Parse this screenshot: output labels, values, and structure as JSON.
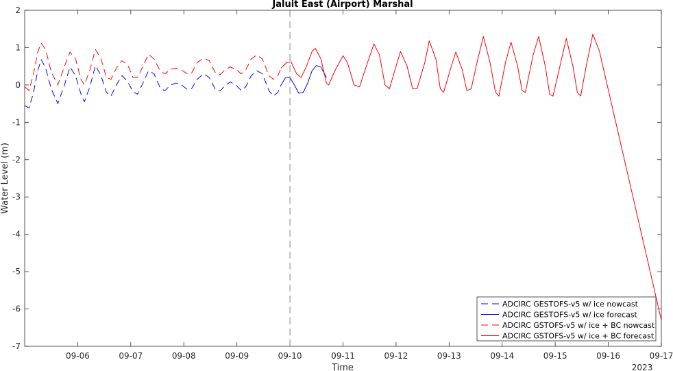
{
  "chart_data": {
    "type": "line",
    "title": "Jaluit East (Airport) Marshal",
    "xlabel": "Time",
    "ylabel": "Water Level (m)",
    "year_label": "2023",
    "ylim": [
      -7,
      2
    ],
    "yticks": [
      "-7",
      "-6",
      "-5",
      "-4",
      "-3",
      "-2",
      "-1",
      "0",
      "1",
      "2"
    ],
    "xlim": [
      "2023-09-05 00:00",
      "2023-09-17 00:00"
    ],
    "xticks": [
      "09-06",
      "09-07",
      "09-08",
      "09-09",
      "09-10",
      "09-11",
      "09-12",
      "09-13",
      "09-14",
      "09-15",
      "09-16",
      "09-17"
    ],
    "nowcast_forecast_boundary": "2023-09-10 00:00",
    "grid": false,
    "legend_position": "bottom-right",
    "series": [
      {
        "name": "ADCIRC GESTOFS-v5 w/ ice nowcast",
        "color": "#0000ff",
        "dash": "dashed",
        "points": [
          [
            "09-05 00:00",
            -0.55
          ],
          [
            "09-05 02:00",
            -0.62
          ],
          [
            "09-05 04:00",
            -0.2
          ],
          [
            "09-05 06:00",
            0.4
          ],
          [
            "09-05 07:30",
            0.68
          ],
          [
            "09-05 09:30",
            0.45
          ],
          [
            "09-05 12:00",
            -0.1
          ],
          [
            "09-05 15:00",
            -0.5
          ],
          [
            "09-05 18:00",
            0.0
          ],
          [
            "09-05 20:30",
            0.48
          ],
          [
            "09-05 23:00",
            0.25
          ],
          [
            "09-06 01:30",
            -0.25
          ],
          [
            "09-06 03:00",
            -0.45
          ],
          [
            "09-06 05:30",
            -0.05
          ],
          [
            "09-06 08:00",
            0.52
          ],
          [
            "09-06 10:30",
            0.25
          ],
          [
            "09-06 13:00",
            -0.2
          ],
          [
            "09-06 15:00",
            -0.3
          ],
          [
            "09-06 17:30",
            0.0
          ],
          [
            "09-06 20:00",
            0.25
          ],
          [
            "09-06 22:30",
            0.1
          ],
          [
            "09-07 01:00",
            -0.18
          ],
          [
            "09-07 03:00",
            -0.25
          ],
          [
            "09-07 05:30",
            0.05
          ],
          [
            "09-07 08:00",
            0.38
          ],
          [
            "09-07 10:30",
            0.3
          ],
          [
            "09-07 13:30",
            -0.1
          ],
          [
            "09-07 15:30",
            -0.15
          ],
          [
            "09-07 18:00",
            0.0
          ],
          [
            "09-07 20:30",
            0.05
          ],
          [
            "09-07 23:00",
            0.0
          ],
          [
            "09-08 01:30",
            -0.12
          ],
          [
            "09-08 03:30",
            -0.1
          ],
          [
            "09-08 06:00",
            0.15
          ],
          [
            "09-08 09:00",
            0.3
          ],
          [
            "09-08 11:30",
            0.2
          ],
          [
            "09-08 14:30",
            -0.15
          ],
          [
            "09-08 16:30",
            -0.15
          ],
          [
            "09-08 19:00",
            0.0
          ],
          [
            "09-08 21:00",
            0.08
          ],
          [
            "09-08 23:30",
            0.0
          ],
          [
            "09-09 02:00",
            -0.15
          ],
          [
            "09-09 04:00",
            -0.05
          ],
          [
            "09-09 06:30",
            0.25
          ],
          [
            "09-09 09:00",
            0.38
          ],
          [
            "09-09 11:30",
            0.3
          ],
          [
            "09-09 14:30",
            -0.15
          ],
          [
            "09-09 16:30",
            -0.3
          ],
          [
            "09-09 18:30",
            -0.2
          ],
          [
            "09-09 20:00",
            0.0
          ]
        ]
      },
      {
        "name": "ADCIRC GESTOFS-v5 w/ ice forecast",
        "color": "#0000ff",
        "dash": "solid",
        "points": [
          [
            "09-09 20:00",
            0.0
          ],
          [
            "09-09 22:00",
            0.2
          ],
          [
            "09-10 00:00",
            0.2
          ],
          [
            "09-10 02:00",
            0.0
          ],
          [
            "09-10 04:00",
            -0.22
          ],
          [
            "09-10 06:00",
            -0.2
          ],
          [
            "09-10 08:00",
            0.05
          ],
          [
            "09-10 10:00",
            0.38
          ],
          [
            "09-10 12:00",
            0.52
          ],
          [
            "09-10 14:00",
            0.48
          ],
          [
            "09-10 16:30",
            0.2
          ]
        ]
      },
      {
        "name": "ADCIRC GSTOFS-v5 w/ ice + BC nowcast",
        "color": "#ff0000",
        "dash": "dashed",
        "points": [
          [
            "09-05 00:00",
            -0.05
          ],
          [
            "09-05 02:00",
            -0.15
          ],
          [
            "09-05 04:00",
            0.3
          ],
          [
            "09-05 06:00",
            0.9
          ],
          [
            "09-05 07:30",
            1.12
          ],
          [
            "09-05 09:30",
            0.95
          ],
          [
            "09-05 12:00",
            0.35
          ],
          [
            "09-05 15:00",
            0.0
          ],
          [
            "09-05 18:00",
            0.5
          ],
          [
            "09-05 20:30",
            0.88
          ],
          [
            "09-05 23:00",
            0.7
          ],
          [
            "09-06 01:30",
            0.15
          ],
          [
            "09-06 03:00",
            0.0
          ],
          [
            "09-06 05:30",
            0.4
          ],
          [
            "09-06 08:00",
            0.95
          ],
          [
            "09-06 10:30",
            0.7
          ],
          [
            "09-06 13:00",
            0.2
          ],
          [
            "09-06 15:00",
            0.15
          ],
          [
            "09-06 17:30",
            0.45
          ],
          [
            "09-06 20:00",
            0.65
          ],
          [
            "09-06 22:30",
            0.55
          ],
          [
            "09-07 01:00",
            0.2
          ],
          [
            "09-07 03:00",
            0.2
          ],
          [
            "09-07 05:30",
            0.5
          ],
          [
            "09-07 08:00",
            0.82
          ],
          [
            "09-07 10:30",
            0.7
          ],
          [
            "09-07 13:30",
            0.35
          ],
          [
            "09-07 15:30",
            0.3
          ],
          [
            "09-07 18:00",
            0.42
          ],
          [
            "09-07 20:30",
            0.45
          ],
          [
            "09-07 23:00",
            0.4
          ],
          [
            "09-08 01:30",
            0.3
          ],
          [
            "09-08 03:30",
            0.32
          ],
          [
            "09-08 06:00",
            0.6
          ],
          [
            "09-08 09:00",
            0.72
          ],
          [
            "09-08 11:30",
            0.65
          ],
          [
            "09-08 14:30",
            0.3
          ],
          [
            "09-08 16:30",
            0.28
          ],
          [
            "09-08 19:00",
            0.42
          ],
          [
            "09-08 21:00",
            0.48
          ],
          [
            "09-08 23:30",
            0.42
          ],
          [
            "09-09 02:00",
            0.3
          ],
          [
            "09-09 04:00",
            0.4
          ],
          [
            "09-09 06:30",
            0.7
          ],
          [
            "09-09 09:00",
            0.8
          ],
          [
            "09-09 11:30",
            0.7
          ],
          [
            "09-09 14:30",
            0.25
          ],
          [
            "09-09 16:30",
            0.15
          ],
          [
            "09-09 18:30",
            0.25
          ],
          [
            "09-09 20:00",
            0.45
          ]
        ]
      },
      {
        "name": "ADCIRC GSTOFS-v5 w/ ice + BC forecast",
        "color": "#ff0000",
        "dash": "solid",
        "points": [
          [
            "09-09 20:00",
            0.45
          ],
          [
            "09-09 22:30",
            0.6
          ],
          [
            "09-10 00:30",
            0.62
          ],
          [
            "09-10 03:00",
            0.3
          ],
          [
            "09-10 05:00",
            0.2
          ],
          [
            "09-10 07:30",
            0.5
          ],
          [
            "09-10 10:00",
            0.9
          ],
          [
            "09-10 11:30",
            0.98
          ],
          [
            "09-10 14:00",
            0.7
          ],
          [
            "09-10 16:30",
            0.05
          ],
          [
            "09-10 17:30",
            0.0
          ],
          [
            "09-10 20:30",
            0.4
          ],
          [
            "09-11 00:00",
            0.78
          ],
          [
            "09-11 02:00",
            0.6
          ],
          [
            "09-11 05:00",
            0.0
          ],
          [
            "09-11 07:30",
            -0.05
          ],
          [
            "09-11 10:30",
            0.5
          ],
          [
            "09-11 14:00",
            1.1
          ],
          [
            "09-11 16:30",
            0.8
          ],
          [
            "09-11 19:00",
            0.0
          ],
          [
            "09-11 21:00",
            -0.1
          ],
          [
            "09-12 00:00",
            0.5
          ],
          [
            "09-12 02:00",
            0.9
          ],
          [
            "09-12 05:00",
            0.5
          ],
          [
            "09-12 07:30",
            -0.1
          ],
          [
            "09-12 09:30",
            -0.1
          ],
          [
            "09-12 13:00",
            0.6
          ],
          [
            "09-12 15:00",
            1.18
          ],
          [
            "09-12 18:00",
            0.7
          ],
          [
            "09-12 20:00",
            -0.1
          ],
          [
            "09-12 21:30",
            -0.2
          ],
          [
            "09-13 01:00",
            0.5
          ],
          [
            "09-13 03:00",
            0.88
          ],
          [
            "09-13 06:00",
            0.4
          ],
          [
            "09-13 08:00",
            -0.15
          ],
          [
            "09-13 10:00",
            -0.1
          ],
          [
            "09-13 13:00",
            0.7
          ],
          [
            "09-13 15:30",
            1.3
          ],
          [
            "09-13 18:30",
            0.6
          ],
          [
            "09-13 21:00",
            -0.2
          ],
          [
            "09-13 22:30",
            -0.3
          ],
          [
            "09-14 01:30",
            0.6
          ],
          [
            "09-14 04:00",
            1.15
          ],
          [
            "09-14 07:00",
            0.5
          ],
          [
            "09-14 09:00",
            -0.15
          ],
          [
            "09-14 10:30",
            -0.2
          ],
          [
            "09-14 14:00",
            0.8
          ],
          [
            "09-14 16:30",
            1.3
          ],
          [
            "09-14 19:30",
            0.5
          ],
          [
            "09-14 21:30",
            -0.25
          ],
          [
            "09-14 23:00",
            -0.3
          ],
          [
            "09-15 02:30",
            0.6
          ],
          [
            "09-15 05:00",
            1.25
          ],
          [
            "09-15 08:00",
            0.5
          ],
          [
            "09-15 10:00",
            -0.2
          ],
          [
            "09-15 11:30",
            -0.3
          ],
          [
            "09-15 14:00",
            0.5
          ],
          [
            "09-15 17:00",
            1.36
          ],
          [
            "09-15 20:00",
            0.9
          ],
          [
            "09-17 00:00",
            -6.3
          ]
        ]
      }
    ]
  }
}
